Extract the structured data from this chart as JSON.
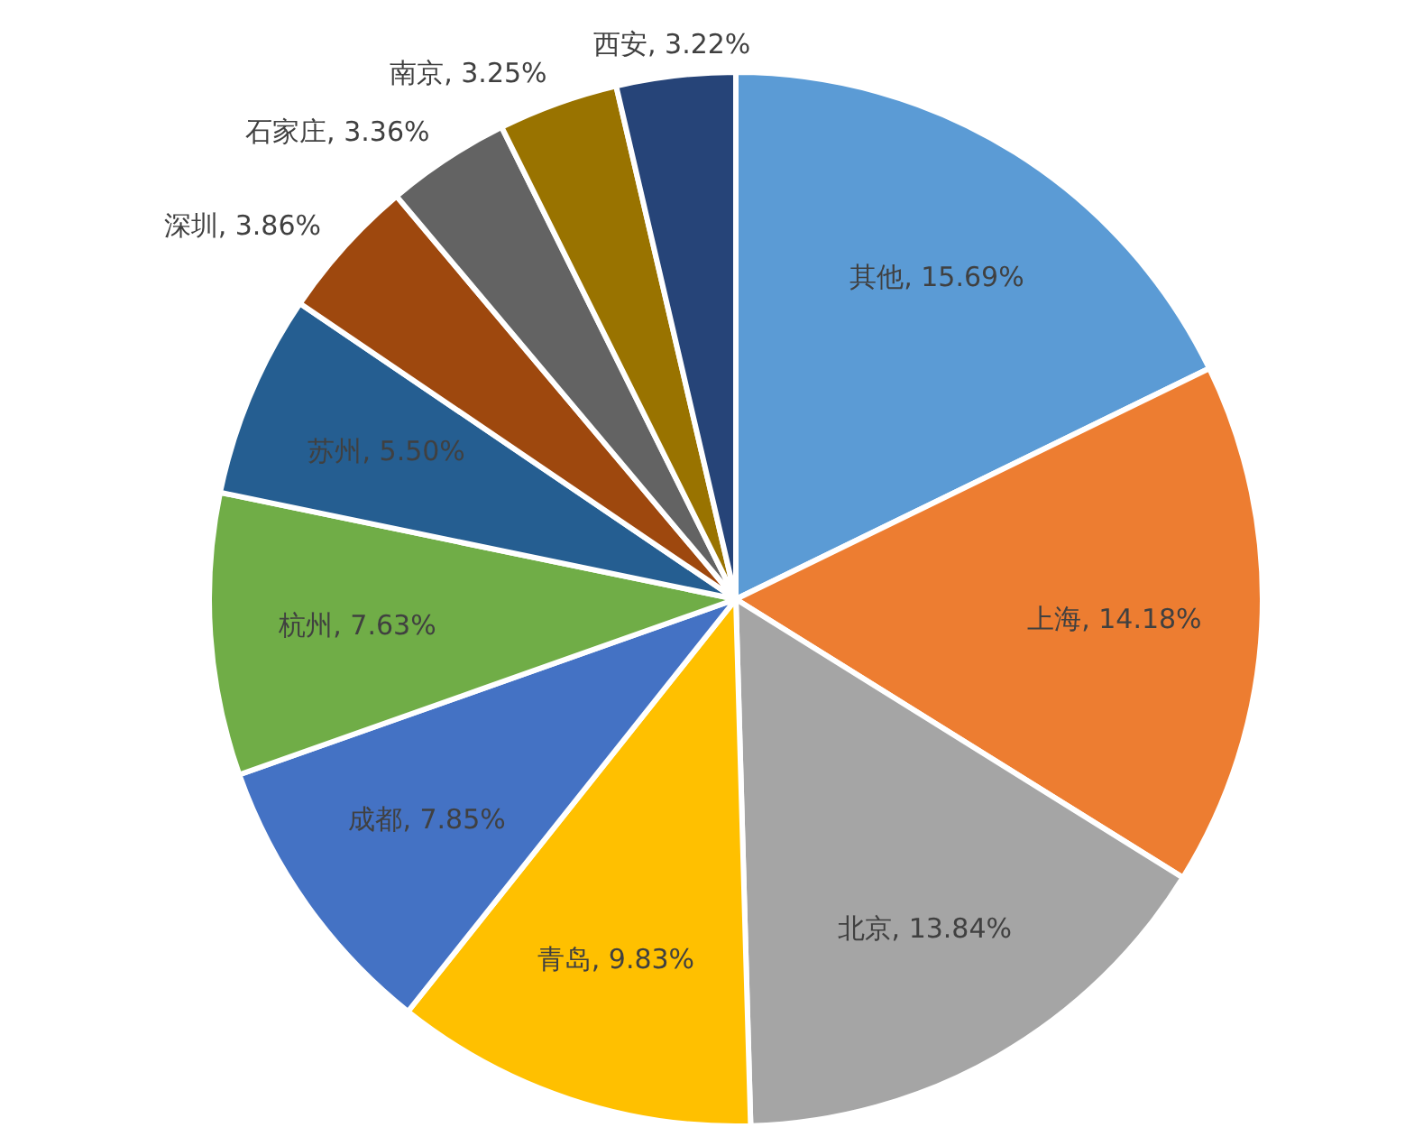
{
  "chart_data": {
    "type": "pie",
    "categories": [
      "其他",
      "上海",
      "北京",
      "青岛",
      "成都",
      "杭州",
      "苏州",
      "深圳",
      "石家庄",
      "南京",
      "西安"
    ],
    "values": [
      15.69,
      14.18,
      13.84,
      9.83,
      7.85,
      7.63,
      5.5,
      3.86,
      3.36,
      3.25,
      3.22
    ],
    "value_labels": [
      "15.69%",
      "14.18%",
      "13.84%",
      "9.83%",
      "7.85%",
      "7.63%",
      "5.50%",
      "3.86%",
      "3.36%",
      "3.25%",
      "3.22%"
    ],
    "colors": [
      "#5b9bd5",
      "#ed7d31",
      "#a5a5a5",
      "#ffc000",
      "#4472c4",
      "#70ad47",
      "#255e91",
      "#9e480e",
      "#636363",
      "#997300",
      "#264478"
    ]
  }
}
